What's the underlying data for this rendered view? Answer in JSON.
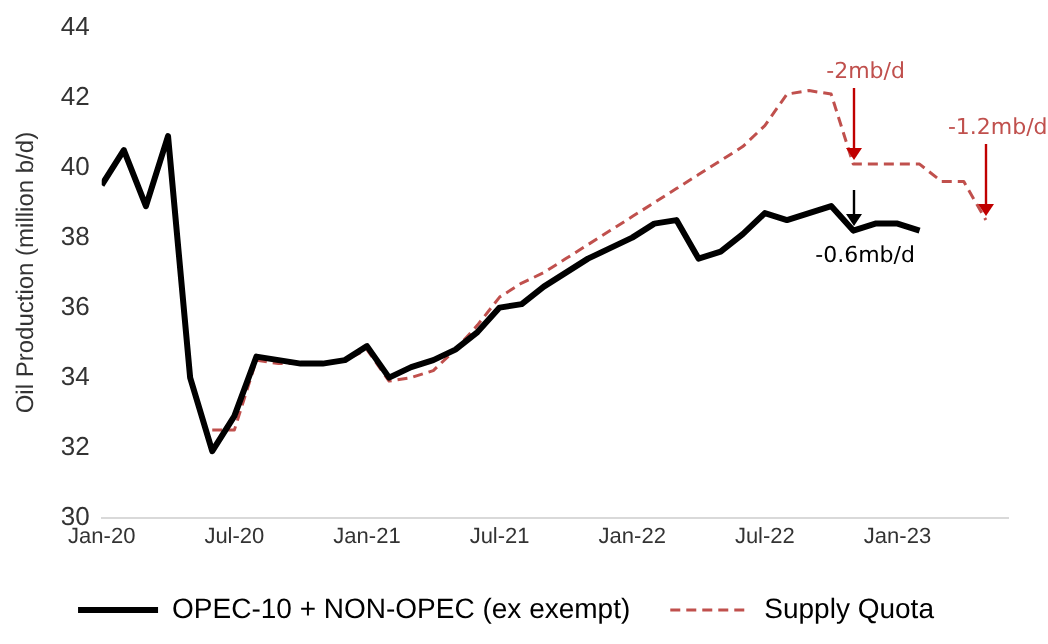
{
  "chart_data": {
    "type": "line",
    "ylabel": "Oil Production (million b/d)",
    "x": [
      "2020-01",
      "2020-02",
      "2020-03",
      "2020-04",
      "2020-05",
      "2020-06",
      "2020-07",
      "2020-08",
      "2020-09",
      "2020-10",
      "2020-11",
      "2020-12",
      "2021-01",
      "2021-02",
      "2021-03",
      "2021-04",
      "2021-05",
      "2021-06",
      "2021-07",
      "2021-08",
      "2021-09",
      "2021-10",
      "2021-11",
      "2021-12",
      "2022-01",
      "2022-02",
      "2022-03",
      "2022-04",
      "2022-05",
      "2022-06",
      "2022-07",
      "2022-08",
      "2022-09",
      "2022-10",
      "2022-11",
      "2022-12",
      "2023-01",
      "2023-02",
      "2023-03",
      "2023-04",
      "2023-05"
    ],
    "series": [
      {
        "name": "OPEC-10 + NON-OPEC (ex exempt)",
        "color": "#000000",
        "line_style": "solid",
        "values": [
          39.5,
          40.5,
          38.9,
          40.9,
          34.0,
          31.9,
          32.9,
          34.6,
          34.5,
          34.4,
          34.4,
          34.5,
          34.9,
          34.0,
          34.3,
          34.5,
          34.8,
          35.3,
          36.0,
          36.1,
          36.6,
          37.0,
          37.4,
          37.7,
          38.0,
          38.4,
          38.5,
          37.4,
          37.6,
          38.1,
          38.7,
          38.5,
          38.7,
          38.9,
          38.2,
          38.4,
          38.4,
          38.2,
          null,
          null,
          null
        ]
      },
      {
        "name": "Supply Quota",
        "color": "#c0504d",
        "line_style": "dashed",
        "values": [
          null,
          null,
          null,
          null,
          null,
          32.5,
          32.5,
          34.5,
          34.4,
          34.4,
          34.4,
          34.5,
          34.8,
          33.9,
          34.0,
          34.2,
          34.8,
          35.5,
          36.3,
          36.7,
          37.0,
          37.4,
          37.8,
          38.2,
          38.6,
          39.0,
          39.4,
          39.8,
          40.2,
          40.6,
          41.2,
          42.1,
          42.2,
          42.1,
          40.1,
          40.1,
          40.1,
          40.1,
          39.6,
          39.6,
          38.5
        ]
      }
    ],
    "xlim": [
      "2020-01",
      "2023-06"
    ],
    "xticks": [
      {
        "value": "2020-01",
        "label": "Jan-20"
      },
      {
        "value": "2020-07",
        "label": "Jul-20"
      },
      {
        "value": "2021-01",
        "label": "Jan-21"
      },
      {
        "value": "2021-07",
        "label": "Jul-21"
      },
      {
        "value": "2022-01",
        "label": "Jan-22"
      },
      {
        "value": "2022-07",
        "label": "Jul-22"
      },
      {
        "value": "2023-01",
        "label": "Jan-23"
      }
    ],
    "ylim": [
      30,
      44
    ],
    "yticks": [
      30,
      32,
      34,
      36,
      38,
      40,
      42,
      44
    ],
    "grid": false,
    "legend": "bottom",
    "marker": "none",
    "annotations": [
      {
        "text": "-2mb/d",
        "x": "2022-11",
        "y": 40.1
      },
      {
        "text": "-1.2mb/d",
        "x": "2023-05",
        "y": 38.5
      },
      {
        "text": "-0.6mb/d",
        "x": "2022-11",
        "y": 38.2
      }
    ]
  }
}
